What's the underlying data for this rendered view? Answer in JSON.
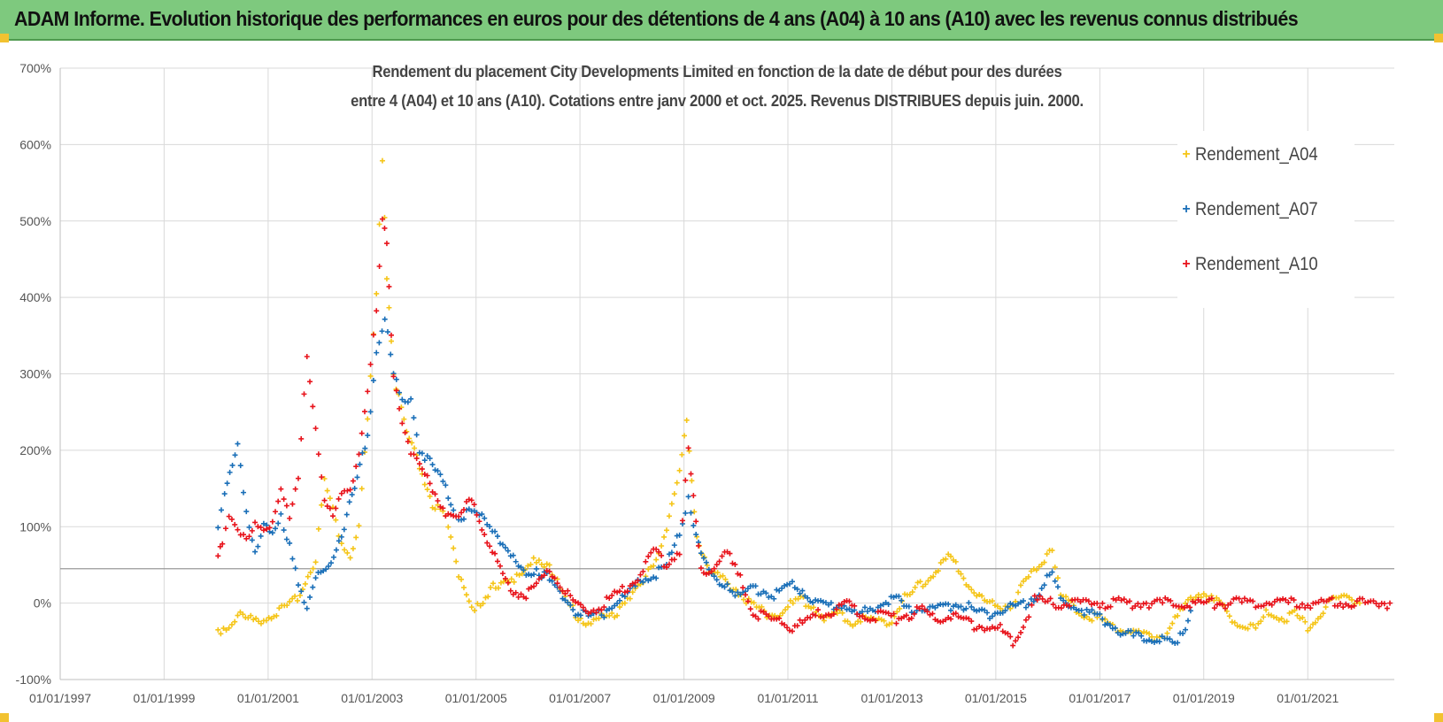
{
  "banner": {
    "title": "ADAM Informe. Evolution historique des performances en euros pour des détentions de 4 ans (A04) à 10 ans (A10) avec les revenus connus distribués"
  },
  "chart_data": {
    "type": "scatter",
    "title_lines": [
      "Rendement du placement City Developments Limited en fonction de la date de début pour des durées",
      "entre 4 (A04) et 10 ans (A10). Cotations entre janv 2000 et oct. 2025.  Revenus DISTRIBUES depuis juin. 2000."
    ],
    "xlabel": "",
    "ylabel": "",
    "xlim": [
      "1997-01-01",
      "2022-09-01"
    ],
    "ylim": [
      -100,
      700
    ],
    "x_ticks": [
      "01/01/1997",
      "01/01/1999",
      "01/01/2001",
      "01/01/2003",
      "01/01/2005",
      "01/01/2007",
      "01/01/2009",
      "01/01/2011",
      "01/01/2013",
      "01/01/2015",
      "01/01/2017",
      "01/01/2019",
      "01/01/2021"
    ],
    "y_ticks": [
      "-100%",
      "0%",
      "100%",
      "200%",
      "300%",
      "400%",
      "500%",
      "600%",
      "700%"
    ],
    "y_tick_values": [
      -100,
      0,
      100,
      200,
      300,
      400,
      500,
      600,
      700
    ],
    "grid": true,
    "reference_line_y": 45,
    "legend_position": "top-right",
    "marker": "+",
    "series": [
      {
        "name": "Rendement_A04",
        "color": "#f5c518",
        "points": [
          [
            "2000-01-15",
            -35
          ],
          [
            "2000-04-01",
            -30
          ],
          [
            "2000-06-01",
            -15
          ],
          [
            "2000-09-01",
            -22
          ],
          [
            "2000-12-01",
            -20
          ],
          [
            "2001-03-01",
            -12
          ],
          [
            "2001-06-01",
            -5
          ],
          [
            "2001-09-01",
            20
          ],
          [
            "2001-12-01",
            60
          ],
          [
            "2002-02-01",
            160
          ],
          [
            "2002-04-01",
            120
          ],
          [
            "2002-06-01",
            80
          ],
          [
            "2002-08-01",
            60
          ],
          [
            "2002-10-01",
            100
          ],
          [
            "2002-12-01",
            240
          ],
          [
            "2003-02-01",
            400
          ],
          [
            "2003-03-15",
            580
          ],
          [
            "2003-04-15",
            430
          ],
          [
            "2003-06-01",
            300
          ],
          [
            "2003-09-01",
            220
          ],
          [
            "2003-12-01",
            180
          ],
          [
            "2004-03-01",
            130
          ],
          [
            "2004-06-01",
            110
          ],
          [
            "2004-09-01",
            40
          ],
          [
            "2004-12-01",
            0
          ],
          [
            "2005-02-01",
            -10
          ],
          [
            "2005-05-01",
            20
          ],
          [
            "2005-08-01",
            35
          ],
          [
            "2005-11-01",
            30
          ],
          [
            "2006-03-01",
            60
          ],
          [
            "2006-06-01",
            50
          ],
          [
            "2006-09-01",
            10
          ],
          [
            "2006-12-01",
            -15
          ],
          [
            "2007-03-01",
            -25
          ],
          [
            "2007-06-01",
            -20
          ],
          [
            "2007-09-01",
            -15
          ],
          [
            "2007-12-01",
            10
          ],
          [
            "2008-03-01",
            20
          ],
          [
            "2008-06-01",
            50
          ],
          [
            "2008-09-01",
            100
          ],
          [
            "2008-12-01",
            170
          ],
          [
            "2009-01-20",
            235
          ],
          [
            "2009-04-01",
            90
          ],
          [
            "2009-07-01",
            40
          ],
          [
            "2009-10-01",
            30
          ],
          [
            "2010-01-01",
            20
          ],
          [
            "2010-04-01",
            0
          ],
          [
            "2010-07-01",
            -10
          ],
          [
            "2010-10-01",
            -15
          ],
          [
            "2011-01-01",
            -5
          ],
          [
            "2011-04-01",
            5
          ],
          [
            "2011-07-01",
            -5
          ],
          [
            "2011-10-01",
            -20
          ],
          [
            "2012-01-01",
            -15
          ],
          [
            "2012-04-01",
            -25
          ],
          [
            "2012-07-01",
            -20
          ],
          [
            "2012-10-01",
            -25
          ],
          [
            "2013-01-01",
            -20
          ],
          [
            "2013-04-01",
            5
          ],
          [
            "2013-07-01",
            20
          ],
          [
            "2013-10-01",
            35
          ],
          [
            "2014-02-01",
            60
          ],
          [
            "2014-05-01",
            40
          ],
          [
            "2014-08-01",
            15
          ],
          [
            "2014-11-01",
            0
          ],
          [
            "2015-02-01",
            -5
          ],
          [
            "2015-05-01",
            0
          ],
          [
            "2015-08-01",
            30
          ],
          [
            "2015-11-01",
            50
          ],
          [
            "2016-02-01",
            75
          ],
          [
            "2016-04-01",
            10
          ],
          [
            "2016-07-01",
            -5
          ],
          [
            "2016-10-01",
            -15
          ],
          [
            "2017-01-01",
            -20
          ],
          [
            "2017-04-01",
            -30
          ],
          [
            "2017-07-01",
            -35
          ],
          [
            "2017-10-01",
            -40
          ],
          [
            "2018-01-01",
            -45
          ],
          [
            "2018-04-01",
            -40
          ],
          [
            "2018-07-01",
            -20
          ],
          [
            "2018-10-01",
            10
          ],
          [
            "2019-01-01",
            15
          ],
          [
            "2019-04-01",
            0
          ],
          [
            "2019-07-01",
            -15
          ],
          [
            "2019-10-01",
            -30
          ],
          [
            "2020-01-01",
            -35
          ],
          [
            "2020-04-01",
            -10
          ],
          [
            "2020-07-01",
            -20
          ],
          [
            "2020-10-01",
            -15
          ],
          [
            "2021-01-01",
            -30
          ],
          [
            "2021-04-01",
            -15
          ],
          [
            "2021-07-01",
            5
          ],
          [
            "2021-10-01",
            10
          ],
          [
            "2022-01-01",
            0
          ]
        ]
      },
      {
        "name": "Rendement_A07",
        "color": "#1a6fb8",
        "points": [
          [
            "2000-01-15",
            100
          ],
          [
            "2000-03-01",
            140
          ],
          [
            "2000-06-01",
            205
          ],
          [
            "2000-08-01",
            120
          ],
          [
            "2000-10-01",
            70
          ],
          [
            "2000-12-01",
            100
          ],
          [
            "2001-02-01",
            90
          ],
          [
            "2001-04-01",
            110
          ],
          [
            "2001-06-01",
            80
          ],
          [
            "2001-08-01",
            30
          ],
          [
            "2001-10-01",
            -10
          ],
          [
            "2001-12-01",
            30
          ],
          [
            "2002-03-01",
            50
          ],
          [
            "2002-06-01",
            90
          ],
          [
            "2002-09-01",
            150
          ],
          [
            "2002-12-01",
            220
          ],
          [
            "2003-02-01",
            330
          ],
          [
            "2003-04-01",
            375
          ],
          [
            "2003-06-01",
            300
          ],
          [
            "2003-08-01",
            260
          ],
          [
            "2003-10-01",
            270
          ],
          [
            "2003-12-01",
            200
          ],
          [
            "2004-03-01",
            180
          ],
          [
            "2004-06-01",
            150
          ],
          [
            "2004-09-01",
            110
          ],
          [
            "2004-12-01",
            120
          ],
          [
            "2005-03-01",
            110
          ],
          [
            "2005-06-01",
            90
          ],
          [
            "2005-09-01",
            60
          ],
          [
            "2005-12-01",
            40
          ],
          [
            "2006-03-01",
            45
          ],
          [
            "2006-06-01",
            30
          ],
          [
            "2006-09-01",
            10
          ],
          [
            "2006-12-01",
            -10
          ],
          [
            "2007-03-01",
            -20
          ],
          [
            "2007-06-01",
            -15
          ],
          [
            "2007-09-01",
            0
          ],
          [
            "2007-12-01",
            10
          ],
          [
            "2008-03-01",
            30
          ],
          [
            "2008-06-01",
            35
          ],
          [
            "2008-09-01",
            50
          ],
          [
            "2008-12-01",
            90
          ],
          [
            "2009-02-01",
            140
          ],
          [
            "2009-05-01",
            60
          ],
          [
            "2009-08-01",
            30
          ],
          [
            "2009-11-01",
            25
          ],
          [
            "2010-02-01",
            10
          ],
          [
            "2010-05-01",
            20
          ],
          [
            "2010-08-01",
            15
          ],
          [
            "2010-11-01",
            10
          ],
          [
            "2011-02-01",
            25
          ],
          [
            "2011-05-01",
            15
          ],
          [
            "2011-08-01",
            0
          ],
          [
            "2011-11-01",
            -5
          ],
          [
            "2012-02-01",
            0
          ],
          [
            "2012-05-01",
            -15
          ],
          [
            "2012-08-01",
            -10
          ],
          [
            "2012-11-01",
            0
          ],
          [
            "2013-02-01",
            5
          ],
          [
            "2013-05-01",
            -10
          ],
          [
            "2013-08-01",
            -5
          ],
          [
            "2013-11-01",
            -10
          ],
          [
            "2014-02-01",
            -5
          ],
          [
            "2014-05-01",
            0
          ],
          [
            "2014-08-01",
            -10
          ],
          [
            "2014-11-01",
            -15
          ],
          [
            "2015-02-01",
            -10
          ],
          [
            "2015-05-01",
            -5
          ],
          [
            "2015-08-01",
            0
          ],
          [
            "2015-11-01",
            15
          ],
          [
            "2016-02-01",
            40
          ],
          [
            "2016-04-01",
            5
          ],
          [
            "2016-07-01",
            -5
          ],
          [
            "2016-10-01",
            -10
          ],
          [
            "2017-01-01",
            -20
          ],
          [
            "2017-04-01",
            -30
          ],
          [
            "2017-07-01",
            -40
          ],
          [
            "2017-10-01",
            -45
          ],
          [
            "2018-01-01",
            -45
          ],
          [
            "2018-04-01",
            -50
          ],
          [
            "2018-07-01",
            -55
          ],
          [
            "2018-10-01",
            -10
          ]
        ]
      },
      {
        "name": "Rendement_A10",
        "color": "#e8141c",
        "points": [
          [
            "2000-01-15",
            55
          ],
          [
            "2000-02-15",
            80
          ],
          [
            "2000-04-01",
            120
          ],
          [
            "2000-06-01",
            100
          ],
          [
            "2000-08-01",
            80
          ],
          [
            "2000-10-01",
            100
          ],
          [
            "2000-12-01",
            95
          ],
          [
            "2001-02-01",
            110
          ],
          [
            "2001-04-01",
            150
          ],
          [
            "2001-06-01",
            110
          ],
          [
            "2001-08-01",
            160
          ],
          [
            "2001-10-01",
            320
          ],
          [
            "2001-12-01",
            230
          ],
          [
            "2002-02-01",
            140
          ],
          [
            "2002-04-01",
            110
          ],
          [
            "2002-06-01",
            140
          ],
          [
            "2002-08-01",
            150
          ],
          [
            "2002-10-01",
            200
          ],
          [
            "2002-12-01",
            280
          ],
          [
            "2003-02-01",
            380
          ],
          [
            "2003-03-15",
            500
          ],
          [
            "2003-04-15",
            470
          ],
          [
            "2003-06-01",
            300
          ],
          [
            "2003-08-01",
            240
          ],
          [
            "2003-10-01",
            200
          ],
          [
            "2003-12-01",
            180
          ],
          [
            "2004-03-01",
            150
          ],
          [
            "2004-06-01",
            120
          ],
          [
            "2004-09-01",
            110
          ],
          [
            "2004-12-01",
            140
          ],
          [
            "2005-03-01",
            90
          ],
          [
            "2005-06-01",
            50
          ],
          [
            "2005-09-01",
            20
          ],
          [
            "2005-12-01",
            10
          ],
          [
            "2006-03-01",
            20
          ],
          [
            "2006-06-01",
            45
          ],
          [
            "2006-09-01",
            20
          ],
          [
            "2006-12-01",
            -5
          ],
          [
            "2007-03-01",
            -10
          ],
          [
            "2007-06-01",
            -5
          ],
          [
            "2007-09-01",
            10
          ],
          [
            "2007-12-01",
            20
          ],
          [
            "2008-03-01",
            40
          ],
          [
            "2008-06-01",
            70
          ],
          [
            "2008-09-01",
            50
          ],
          [
            "2008-12-01",
            70
          ],
          [
            "2009-02-01",
            200
          ],
          [
            "2009-05-01",
            40
          ],
          [
            "2009-08-01",
            50
          ],
          [
            "2009-11-01",
            65
          ],
          [
            "2010-02-01",
            30
          ],
          [
            "2010-05-01",
            -10
          ],
          [
            "2010-08-01",
            -20
          ],
          [
            "2010-11-01",
            -25
          ],
          [
            "2011-02-01",
            -30
          ],
          [
            "2011-05-01",
            -25
          ],
          [
            "2011-08-01",
            -15
          ],
          [
            "2011-11-01",
            -10
          ],
          [
            "2012-02-01",
            0
          ],
          [
            "2012-05-01",
            -10
          ],
          [
            "2012-08-01",
            -20
          ],
          [
            "2012-11-01",
            -15
          ],
          [
            "2013-02-01",
            -20
          ],
          [
            "2013-05-01",
            -15
          ],
          [
            "2013-08-01",
            -10
          ],
          [
            "2013-11-01",
            -20
          ],
          [
            "2014-02-01",
            -15
          ],
          [
            "2014-05-01",
            -20
          ],
          [
            "2014-08-01",
            -30
          ],
          [
            "2014-11-01",
            -30
          ],
          [
            "2015-02-01",
            -35
          ],
          [
            "2015-05-01",
            -50
          ],
          [
            "2015-08-01",
            -20
          ],
          [
            "2015-10-01",
            5
          ],
          [
            "2016-01-01",
            0
          ],
          [
            "2016-06-01",
            0
          ],
          [
            "2017-01-01",
            0
          ],
          [
            "2017-06-01",
            0
          ],
          [
            "2018-01-01",
            0
          ],
          [
            "2018-06-01",
            0
          ],
          [
            "2019-01-01",
            0
          ],
          [
            "2019-06-01",
            0
          ],
          [
            "2020-01-01",
            0
          ],
          [
            "2020-06-01",
            0
          ],
          [
            "2021-01-01",
            0
          ],
          [
            "2021-06-01",
            0
          ],
          [
            "2022-01-01",
            0
          ],
          [
            "2022-08-01",
            0
          ]
        ]
      }
    ]
  }
}
